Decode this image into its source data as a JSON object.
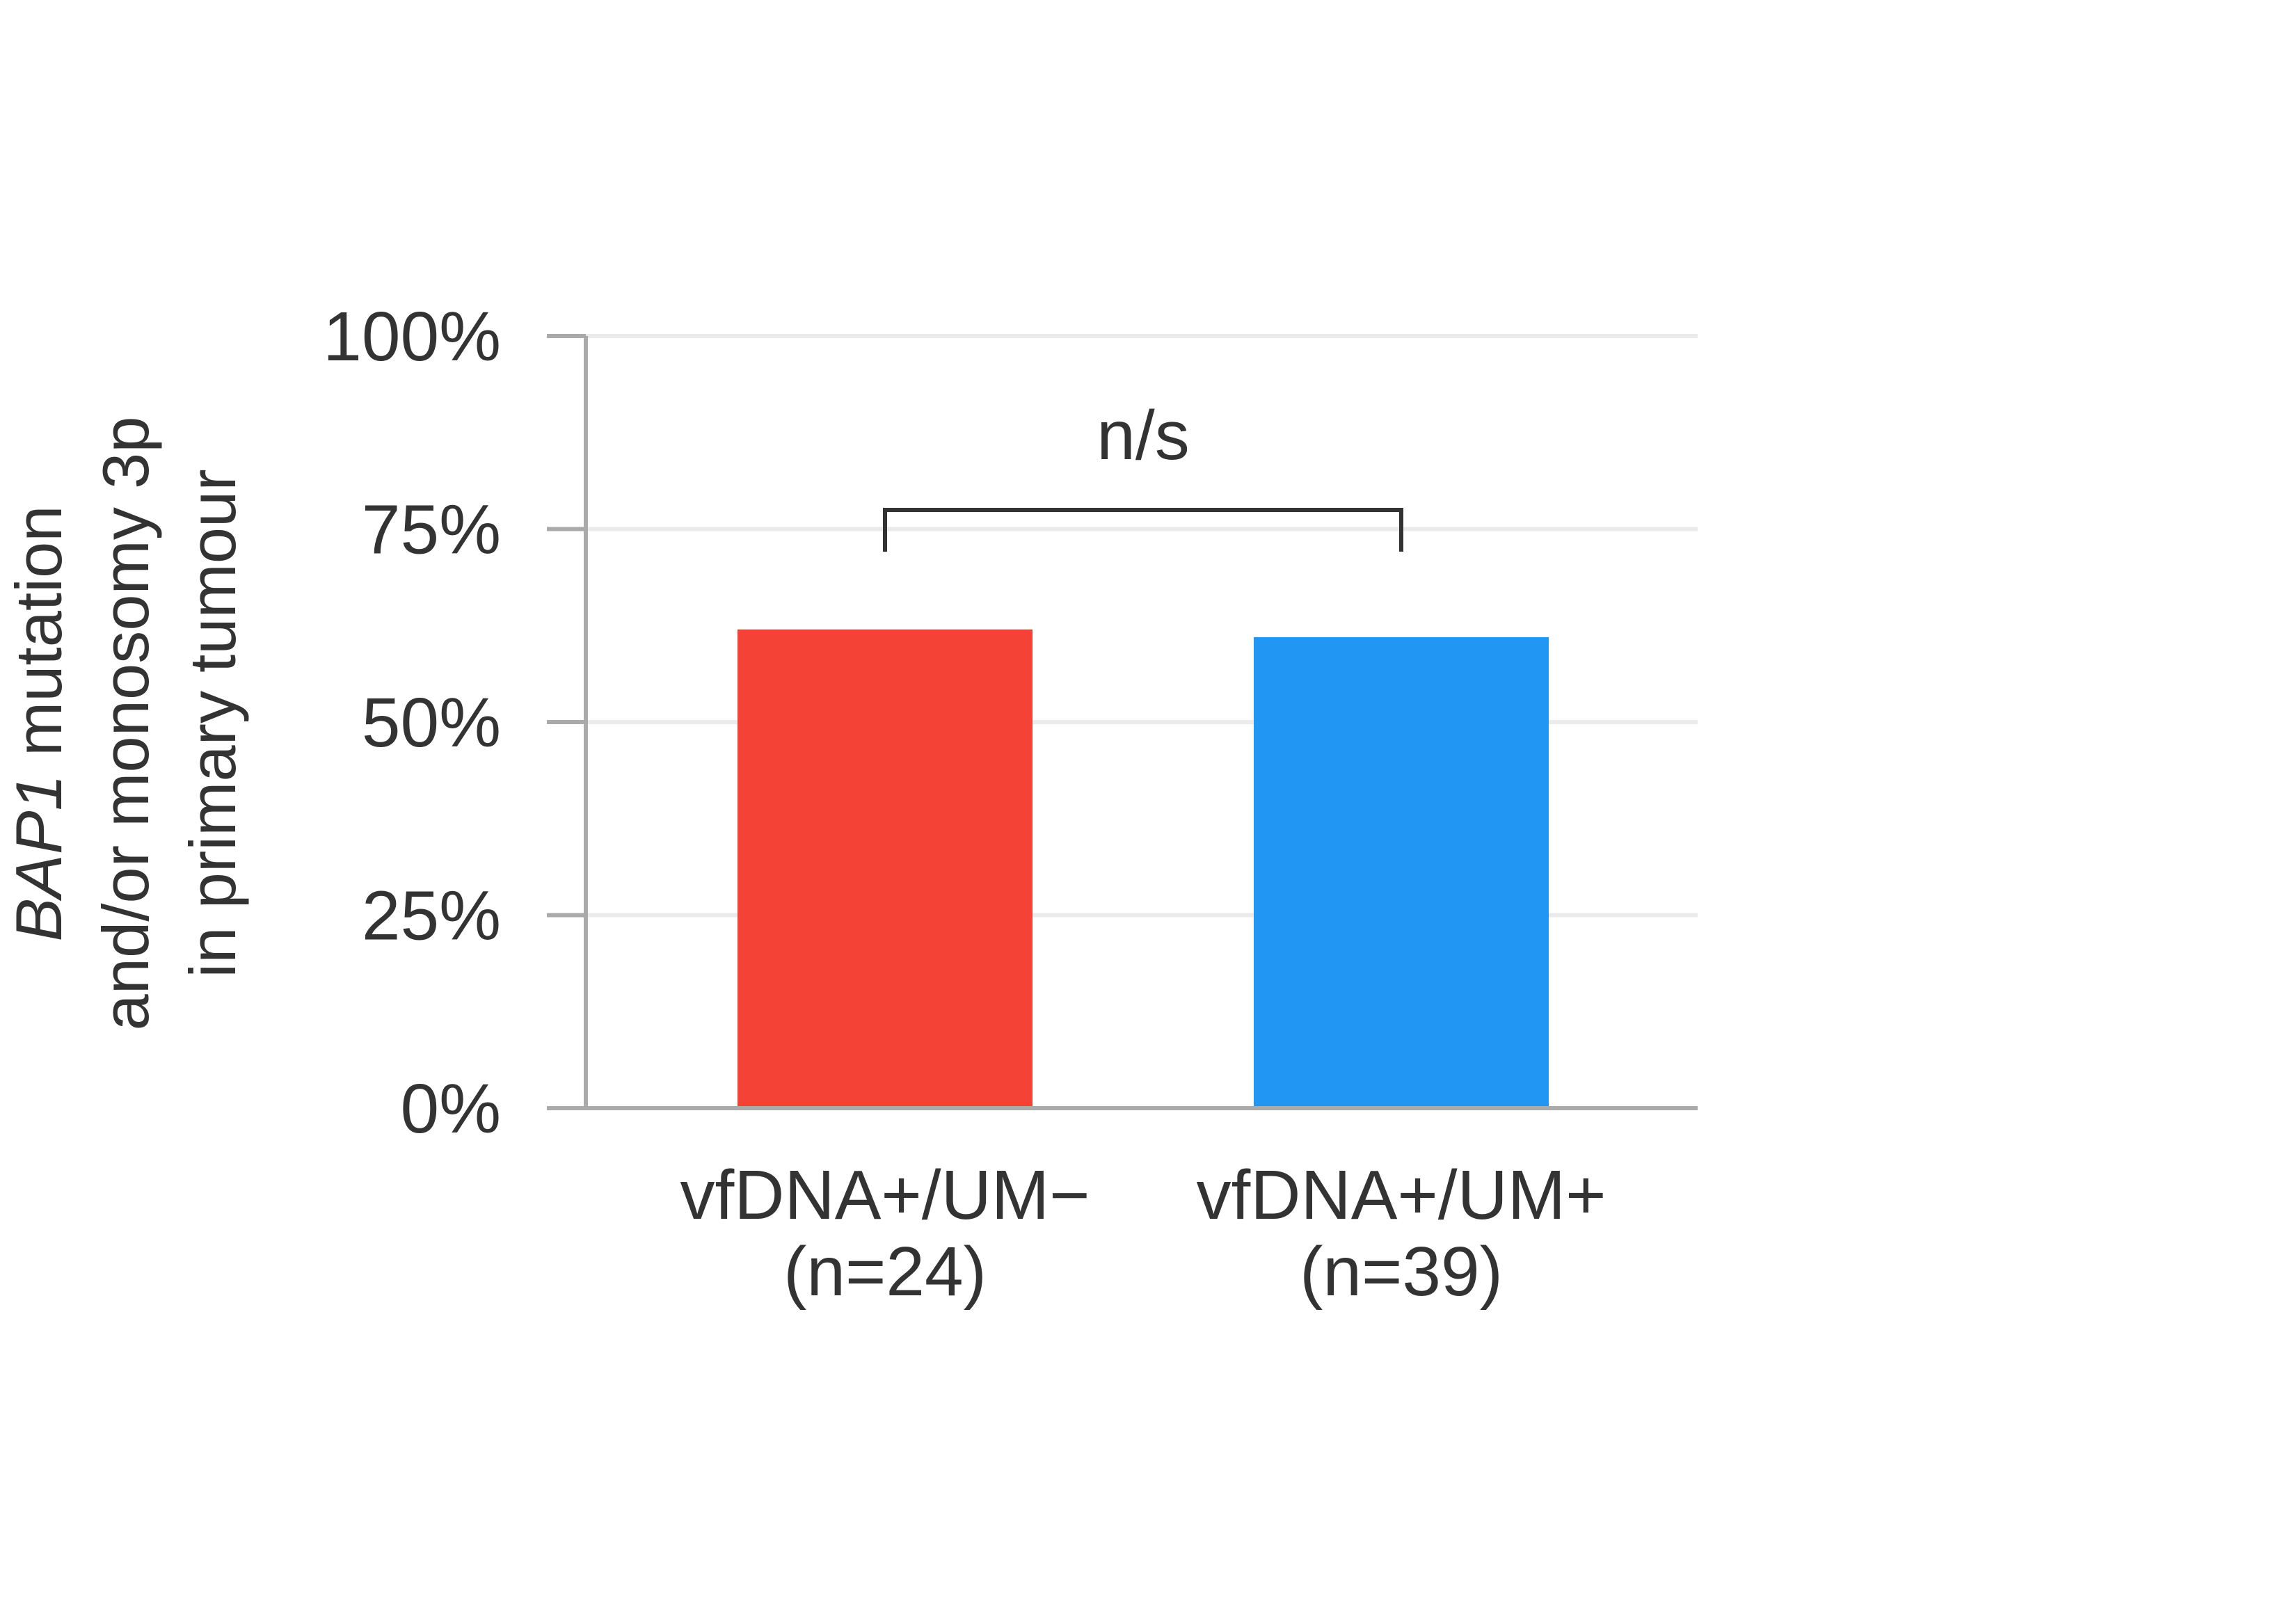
{
  "chart_data": {
    "type": "bar",
    "categories": [
      "vfDNA+/UM−",
      "vfDNA+/UM+"
    ],
    "category_sublabels": [
      "(n=24)",
      "(n=39)"
    ],
    "values": [
      62,
      61
    ],
    "value_unit": "%",
    "ylim": [
      0,
      100
    ],
    "yticks": [
      0,
      25,
      50,
      75,
      100
    ],
    "ytick_labels": [
      "0%",
      "25%",
      "50%",
      "75%",
      "100%"
    ],
    "ylabel_lines": [
      {
        "italic": "BAP1",
        "rest": " mutation"
      },
      {
        "italic": "",
        "rest": "and/or monosomy 3p"
      },
      {
        "italic": "",
        "rest": "in primary tumour"
      }
    ],
    "xlabel": "",
    "bar_colors": [
      "#f44336",
      "#2196f3"
    ],
    "grid": true,
    "legend": "none",
    "annotations": [
      {
        "type": "bracket",
        "from": 0,
        "to": 1,
        "label": "n/s"
      }
    ]
  }
}
